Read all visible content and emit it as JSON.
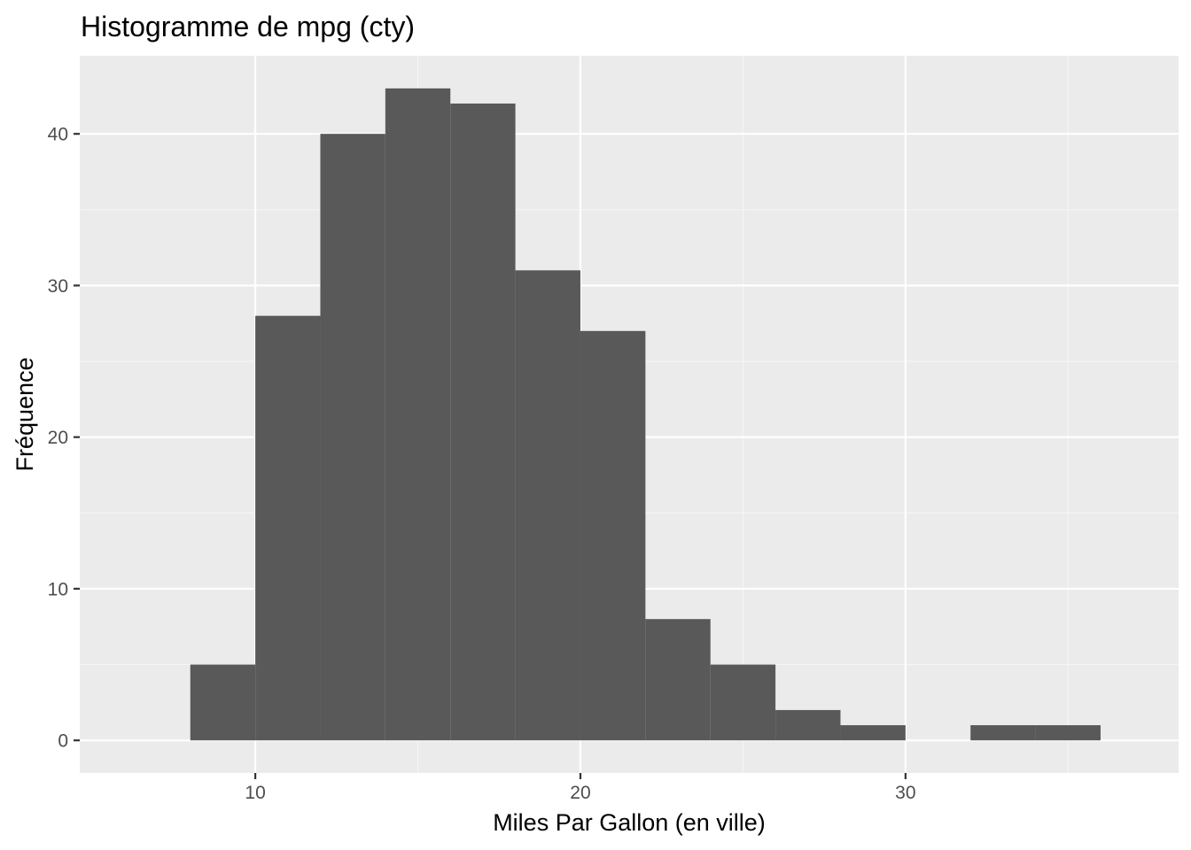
{
  "chart_data": {
    "type": "bar",
    "subtype": "histogram",
    "title": "Histogramme de mpg (cty)",
    "xlabel": "Miles Par Gallon (en ville)",
    "ylabel": "Fréquence",
    "bins": [
      {
        "x0": 8,
        "x1": 10,
        "count": 5
      },
      {
        "x0": 10,
        "x1": 12,
        "count": 28
      },
      {
        "x0": 12,
        "x1": 14,
        "count": 40
      },
      {
        "x0": 14,
        "x1": 16,
        "count": 43
      },
      {
        "x0": 16,
        "x1": 18,
        "count": 42
      },
      {
        "x0": 18,
        "x1": 20,
        "count": 31
      },
      {
        "x0": 20,
        "x1": 22,
        "count": 27
      },
      {
        "x0": 22,
        "x1": 24,
        "count": 8
      },
      {
        "x0": 24,
        "x1": 26,
        "count": 5
      },
      {
        "x0": 26,
        "x1": 28,
        "count": 2
      },
      {
        "x0": 28,
        "x1": 30,
        "count": 1
      },
      {
        "x0": 30,
        "x1": 32,
        "count": 0
      },
      {
        "x0": 32,
        "x1": 34,
        "count": 1
      },
      {
        "x0": 34,
        "x1": 36,
        "count": 1
      }
    ],
    "xlim": [
      4.6,
      38.4
    ],
    "ylim": [
      -2.15,
      45.15
    ],
    "x_ticks": [
      10,
      20,
      30
    ],
    "x_minor_ticks": [
      15,
      25,
      35
    ],
    "y_ticks": [
      0,
      10,
      20,
      30,
      40
    ],
    "y_minor_ticks": [
      5,
      15,
      25,
      35
    ],
    "grid": true,
    "colors": {
      "bar_fill": "#595959",
      "panel_background": "#ebebeb",
      "grid_major": "#ffffff",
      "grid_minor": "#f5f5f5",
      "tick_label": "#4d4d4d",
      "tick_mark": "#333333"
    }
  }
}
